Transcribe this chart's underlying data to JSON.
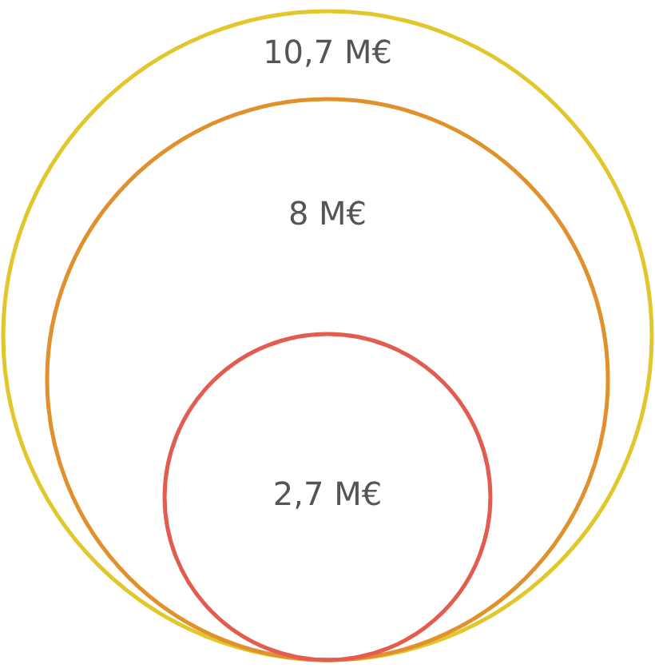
{
  "chart_data": {
    "type": "other",
    "values": [
      10.7,
      8,
      2.7
    ],
    "value_labels": [
      "10,7 M€",
      "8 M€",
      "2,7 M€"
    ],
    "colors": [
      "#e2c72c",
      "#e0912c",
      "#e25c50"
    ]
  }
}
